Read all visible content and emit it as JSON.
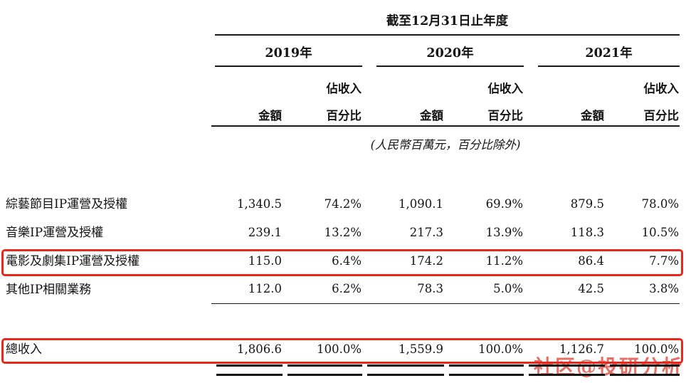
{
  "table": {
    "period_header": "截至12月31日止年度",
    "unit_note": "(人民幣百萬元，百分比除外)",
    "years": [
      "2019年",
      "2020年",
      "2021年"
    ],
    "col_amount": "金額",
    "col_pct_top": "佔收入",
    "col_pct_bottom": "百分比",
    "rows": [
      {
        "label": "綜藝節目IP運營及授權",
        "values": [
          "1,340.5",
          "74.2%",
          "1,090.1",
          "69.9%",
          "879.5",
          "78.0%"
        ],
        "highlighted": false
      },
      {
        "label": "音樂IP運營及授權",
        "values": [
          "239.1",
          "13.2%",
          "217.3",
          "13.9%",
          "118.3",
          "10.5%"
        ],
        "highlighted": false
      },
      {
        "label": "電影及劇集IP運營及授權",
        "values": [
          "115.0",
          "6.4%",
          "174.2",
          "11.2%",
          "86.4",
          "7.7%"
        ],
        "highlighted": true
      },
      {
        "label": "其他IP相關業務",
        "values": [
          "112.0",
          "6.2%",
          "78.3",
          "5.0%",
          "42.5",
          "3.8%"
        ],
        "highlighted": false
      }
    ],
    "total": {
      "label": "總收入",
      "values": [
        "1,806.6",
        "100.0%",
        "1,559.9",
        "100.0%",
        "1,126.7",
        "100.0%"
      ],
      "highlighted": true
    }
  },
  "colors": {
    "highlight_box": "#e8271d",
    "watermark": "#e0564a",
    "text": "#141414"
  },
  "watermark": {
    "text": "社区@投研分析"
  }
}
